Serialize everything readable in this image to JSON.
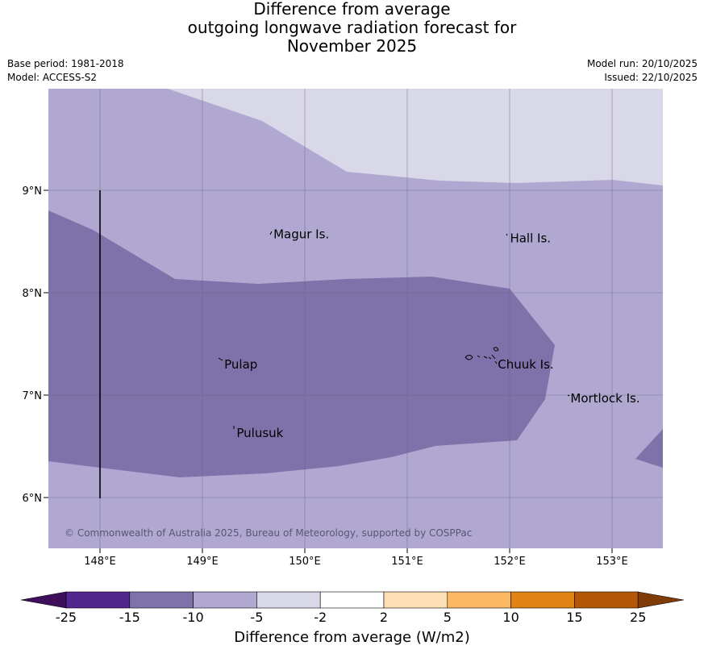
{
  "header": {
    "title_lines": [
      "Difference from average",
      "outgoing longwave radiation forecast for",
      "November 2025"
    ],
    "base_period": "Base period: 1981-2018",
    "model": "Model: ACCESS-S2",
    "model_run": "Model run: 20/10/2025",
    "issued": "Issued: 22/10/2025"
  },
  "map": {
    "lon_range": [
      147.5,
      153.5
    ],
    "lat_range": [
      5.5,
      10.0
    ],
    "lon_ticks": [
      "148°E",
      "149°E",
      "150°E",
      "151°E",
      "152°E",
      "153°E"
    ],
    "lat_ticks": [
      "9°N",
      "8°N",
      "7°N",
      "6°N"
    ],
    "places": [
      {
        "name": "Magur Is.",
        "lon": 149.67,
        "lat": 8.57
      },
      {
        "name": "Hall Is.",
        "lon": 151.98,
        "lat": 8.53
      },
      {
        "name": "Pulap",
        "lon": 149.19,
        "lat": 7.3
      },
      {
        "name": "Chuuk Is.",
        "lon": 151.86,
        "lat": 7.3
      },
      {
        "name": "Mortlock Is.",
        "lon": 152.57,
        "lat": 6.97
      },
      {
        "name": "Pulusuk",
        "lon": 149.31,
        "lat": 6.63
      }
    ],
    "copyright": "© Commonwealth of Australia 2025, Bureau of Meteorology, supported by COSPPac"
  },
  "colorbar": {
    "tick_labels": [
      "-25",
      "-15",
      "-10",
      "-5",
      "-2",
      "2",
      "5",
      "10",
      "15",
      "25"
    ],
    "colors": [
      "#3f0f5c",
      "#54278f",
      "#7f72ab",
      "#b0a8d1",
      "#d8d8e8",
      "#ffffff",
      "#fee0b6",
      "#fdb863",
      "#e08214",
      "#b35806",
      "#7f3b08"
    ],
    "label": "Difference from average (W/m2)"
  }
}
